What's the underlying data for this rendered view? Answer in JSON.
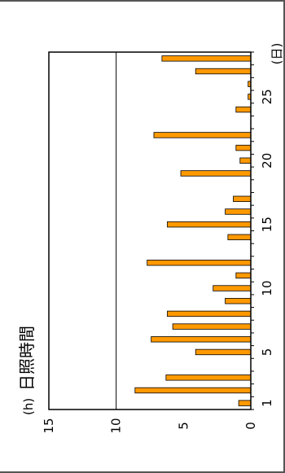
{
  "chart_data": {
    "type": "bar",
    "orientation": "horizontal",
    "title": "日照時間",
    "y_unit_label": "(h)",
    "x_unit_label": "(日)",
    "x": [
      1,
      2,
      3,
      4,
      5,
      6,
      7,
      8,
      9,
      10,
      11,
      12,
      13,
      14,
      15,
      16,
      17,
      18,
      19,
      20,
      21,
      22,
      23,
      24,
      25,
      26,
      27,
      28
    ],
    "values": [
      0.9,
      8.6,
      6.3,
      0,
      4.1,
      7.4,
      5.8,
      6.2,
      1.9,
      2.8,
      1.1,
      7.7,
      0,
      1.7,
      6.2,
      1.9,
      1.3,
      0,
      5.2,
      0.8,
      1.1,
      7.2,
      0,
      1.1,
      0.2,
      0.2,
      4.1,
      6.6
    ],
    "ylim": [
      0,
      15
    ],
    "y_ticks": [
      "0",
      "5",
      "10",
      "15"
    ],
    "x_ticks": [
      "1",
      "5",
      "10",
      "15",
      "20",
      "25"
    ],
    "grid": "major gridlines at 10",
    "bar_color": "#FF9900",
    "bar_edge_color": "#000000"
  }
}
